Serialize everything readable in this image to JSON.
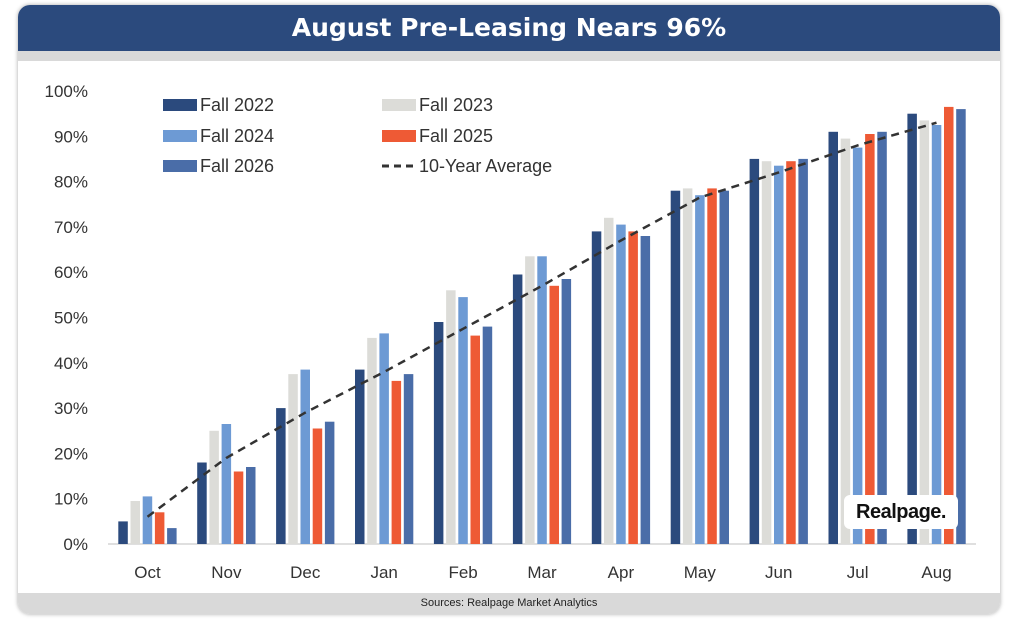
{
  "title": "August Pre-Leasing Nears 96%",
  "footer": "Sources: Realpage Market Analytics",
  "logo_text": "Realpage.",
  "colors": {
    "header_bg": "#2b4a7d",
    "fall_2022": "#2b4a7d",
    "fall_2023": "#dcdcd8",
    "fall_2024": "#6d9ad4",
    "fall_2025": "#ee5a35",
    "fall_2026": "#4a6da8",
    "average_line": "#333333"
  },
  "chart_data": {
    "type": "bar",
    "title": "August Pre-Leasing Nears 96%",
    "xlabel": "",
    "ylabel": "",
    "ylim": [
      0,
      100
    ],
    "y_ticks": [
      "0%",
      "10%",
      "20%",
      "30%",
      "40%",
      "50%",
      "60%",
      "70%",
      "80%",
      "90%",
      "100%"
    ],
    "grid": false,
    "legend_position": "top-left",
    "categories": [
      "Oct",
      "Nov",
      "Dec",
      "Jan",
      "Feb",
      "Mar",
      "Apr",
      "May",
      "Jun",
      "Jul",
      "Aug"
    ],
    "series": [
      {
        "name": "Fall 2022",
        "color": "#2b4a7d",
        "values": [
          5,
          18,
          30,
          38.5,
          49,
          59.5,
          69,
          78,
          85,
          91,
          95
        ]
      },
      {
        "name": "Fall 2023",
        "color": "#dcdcd8",
        "values": [
          9.5,
          25,
          37.5,
          45.5,
          56,
          63.5,
          72,
          78.5,
          84.5,
          89.5,
          93.5
        ]
      },
      {
        "name": "Fall 2024",
        "color": "#6d9ad4",
        "values": [
          10.5,
          26.5,
          38.5,
          46.5,
          54.5,
          63.5,
          70.5,
          77,
          83.5,
          87.5,
          92.5
        ]
      },
      {
        "name": "Fall 2025",
        "color": "#ee5a35",
        "values": [
          7,
          16,
          25.5,
          36,
          46,
          57,
          69,
          78.5,
          84.5,
          90.5,
          96.5
        ]
      },
      {
        "name": "Fall 2026",
        "color": "#4a6da8",
        "values": [
          3.5,
          17,
          27,
          37.5,
          48,
          58.5,
          68,
          78,
          85,
          91,
          96
        ]
      }
    ],
    "line_series": {
      "name": "10-Year Average",
      "style": "dashed",
      "color": "#333333",
      "values": [
        6,
        19,
        29,
        38,
        47.5,
        57,
        67,
        76.5,
        82,
        88,
        93
      ]
    }
  }
}
